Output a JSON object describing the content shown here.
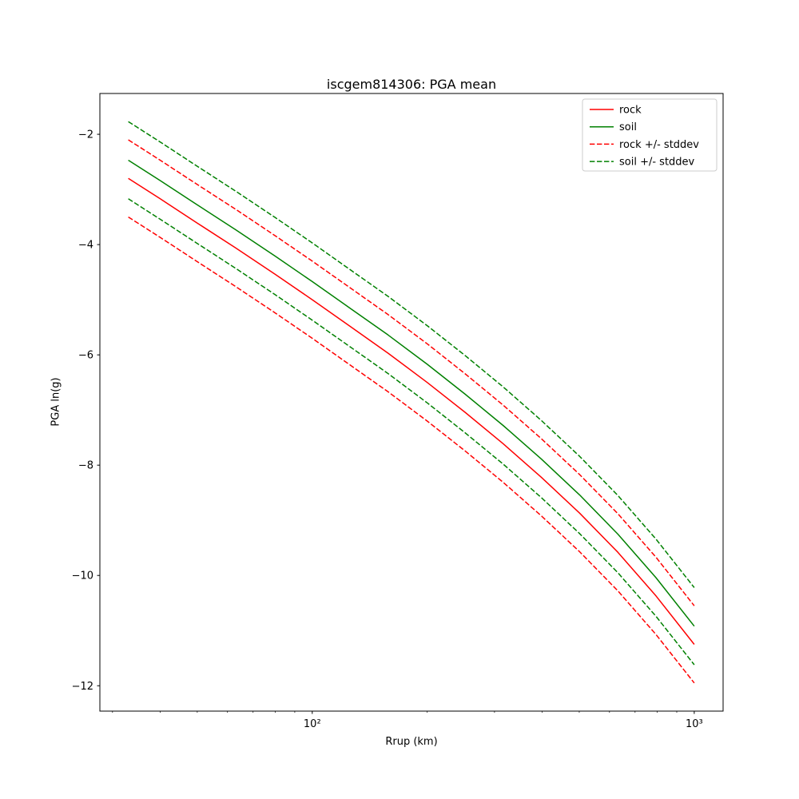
{
  "chart_data": {
    "type": "line",
    "title": "iscgem814306: PGA mean",
    "xlabel": "Rrup (km)",
    "ylabel": "PGA ln(g)",
    "x_scale": "log",
    "y_scale": "linear",
    "xlim": [
      27.8,
      1190
    ],
    "ylim": [
      -12.46,
      -1.26
    ],
    "grid": false,
    "x_ticks": [
      {
        "value": 100,
        "label": "10²"
      },
      {
        "value": 1000,
        "label": "10³"
      }
    ],
    "x_minor_ticks": [
      30,
      40,
      50,
      60,
      70,
      80,
      90,
      200,
      300,
      400,
      500,
      600,
      700,
      800,
      900
    ],
    "y_ticks": [
      {
        "value": -2,
        "label": "−2"
      },
      {
        "value": -4,
        "label": "−4"
      },
      {
        "value": -6,
        "label": "−6"
      },
      {
        "value": -8,
        "label": "−8"
      },
      {
        "value": -10,
        "label": "−10"
      },
      {
        "value": -12,
        "label": "−12"
      }
    ],
    "x": [
      33,
      40,
      50,
      63,
      80,
      100,
      126,
      158,
      200,
      251,
      316,
      398,
      501,
      631,
      794,
      1000
    ],
    "lines": [
      {
        "id": "rock-plus-stddev",
        "color": "#ff0000",
        "dash": "dashed",
        "values": [
          -2.1,
          -2.47,
          -2.91,
          -3.36,
          -3.84,
          -4.3,
          -4.79,
          -5.27,
          -5.8,
          -6.34,
          -6.91,
          -7.52,
          -8.17,
          -8.88,
          -9.67,
          -10.55
        ]
      },
      {
        "id": "rock-minus-stddev",
        "color": "#ff0000",
        "dash": "dashed",
        "values": [
          -3.5,
          -3.87,
          -4.31,
          -4.76,
          -5.24,
          -5.7,
          -6.19,
          -6.67,
          -7.2,
          -7.74,
          -8.31,
          -8.92,
          -9.57,
          -10.28,
          -11.07,
          -11.95
        ]
      },
      {
        "id": "soil-plus-stddev",
        "color": "#008000",
        "dash": "dashed",
        "values": [
          -1.77,
          -2.14,
          -2.58,
          -3.03,
          -3.51,
          -3.97,
          -4.46,
          -4.94,
          -5.47,
          -6.01,
          -6.58,
          -7.19,
          -7.84,
          -8.55,
          -9.34,
          -10.22
        ]
      },
      {
        "id": "soil-minus-stddev",
        "color": "#008000",
        "dash": "dashed",
        "values": [
          -3.17,
          -3.54,
          -3.98,
          -4.43,
          -4.91,
          -5.37,
          -5.86,
          -6.34,
          -6.87,
          -7.41,
          -7.98,
          -8.59,
          -9.24,
          -9.95,
          -10.74,
          -11.62
        ]
      },
      {
        "id": "rock-mean",
        "color": "#ff0000",
        "dash": "solid",
        "values": [
          -2.8,
          -3.17,
          -3.61,
          -4.06,
          -4.54,
          -5.0,
          -5.49,
          -5.97,
          -6.5,
          -7.04,
          -7.61,
          -8.22,
          -8.87,
          -9.58,
          -10.37,
          -11.25
        ]
      },
      {
        "id": "soil-mean",
        "color": "#008000",
        "dash": "solid",
        "values": [
          -2.47,
          -2.84,
          -3.28,
          -3.73,
          -4.21,
          -4.67,
          -5.16,
          -5.64,
          -6.17,
          -6.71,
          -7.28,
          -7.89,
          -8.54,
          -9.25,
          -10.04,
          -10.92
        ]
      }
    ],
    "legend": {
      "position": "upper right",
      "entries": [
        {
          "label": "rock",
          "color": "#ff0000",
          "dash": "solid"
        },
        {
          "label": "soil",
          "color": "#008000",
          "dash": "solid"
        },
        {
          "label": "rock +/- stddev",
          "color": "#ff0000",
          "dash": "dashed"
        },
        {
          "label": "soil +/- stddev",
          "color": "#008000",
          "dash": "dashed"
        }
      ]
    }
  }
}
